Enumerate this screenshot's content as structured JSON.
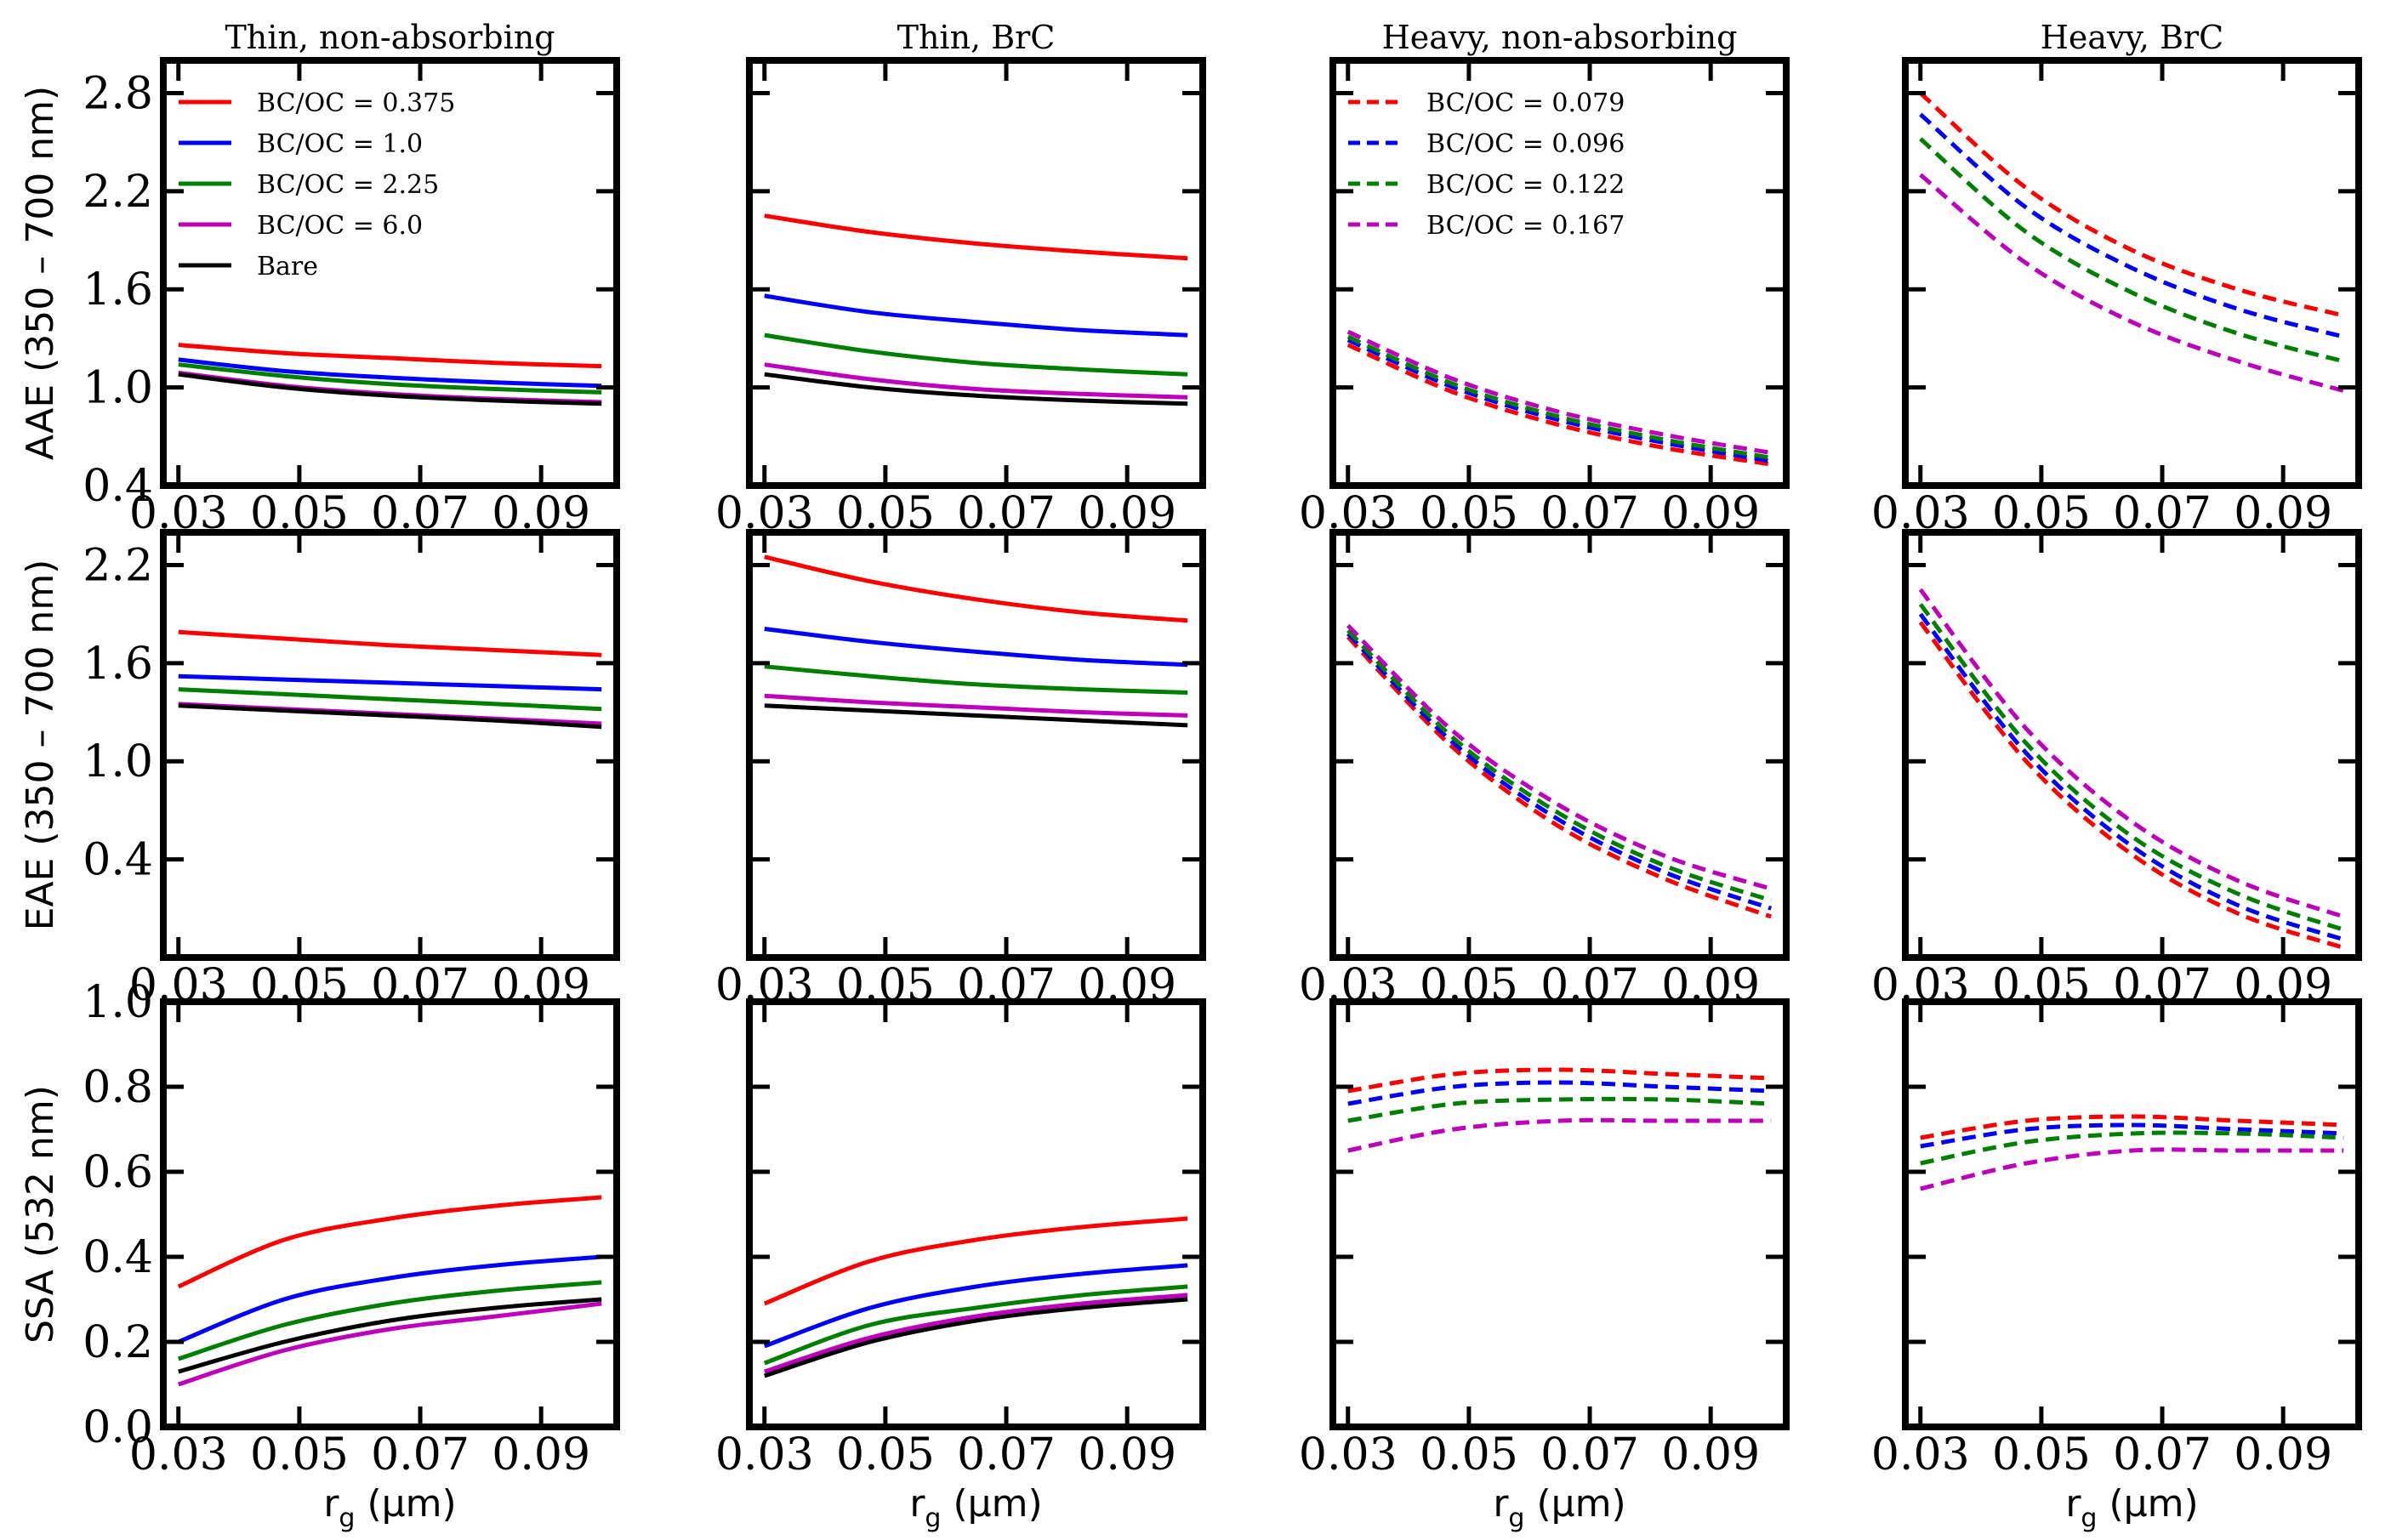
{
  "colors": {
    "red": "#ff0000",
    "blue": "#0000ff",
    "green": "#008000",
    "magenta": "#bf00bf",
    "black": "#000000"
  },
  "xlabel": "r_g (µm)",
  "row_labels": [
    "AAE  (350 – 700 nm)",
    "EAE (350 – 700 nm)",
    "SSA (532 nm)"
  ],
  "chart_data": [
    {
      "panel": "thin-nonabs-aae",
      "type": "line",
      "title": "Thin, non-absorbing",
      "ylabel": "AAE  (350 – 700 nm)",
      "xlim": [
        0.0275,
        0.1025
      ],
      "ylim": [
        0.4,
        3.0
      ],
      "xticks": [
        "0.03",
        "0.05",
        "0.07",
        "0.09"
      ],
      "yticks": [
        "0.4",
        "1.0",
        "1.6",
        "2.2",
        "2.8"
      ],
      "x": [
        0.03,
        0.0475,
        0.065,
        0.0825,
        0.1
      ],
      "series": [
        {
          "name": "BC/OC = 0.375",
          "color": "red",
          "dash": false,
          "values": [
            1.26,
            1.21,
            1.18,
            1.15,
            1.13
          ]
        },
        {
          "name": "BC/OC = 1.0",
          "color": "blue",
          "dash": false,
          "values": [
            1.17,
            1.1,
            1.06,
            1.03,
            1.01
          ]
        },
        {
          "name": "BC/OC = 2.25",
          "color": "green",
          "dash": false,
          "values": [
            1.14,
            1.07,
            1.02,
            0.99,
            0.97
          ]
        },
        {
          "name": "BC/OC = 6.0",
          "color": "magenta",
          "dash": false,
          "values": [
            1.09,
            1.01,
            0.96,
            0.93,
            0.91
          ]
        },
        {
          "name": "Bare",
          "color": "black",
          "dash": false,
          "values": [
            1.08,
            1.0,
            0.95,
            0.92,
            0.9
          ]
        }
      ],
      "legend": [
        {
          "label": "BC/OC = 0.375",
          "color": "red",
          "dash": false
        },
        {
          "label": "BC/OC = 1.0",
          "color": "blue",
          "dash": false
        },
        {
          "label": "BC/OC = 2.25",
          "color": "green",
          "dash": false
        },
        {
          "label": "BC/OC = 6.0",
          "color": "magenta",
          "dash": false
        },
        {
          "label": "Bare",
          "color": "black",
          "dash": false
        }
      ]
    },
    {
      "panel": "thin-brc-aae",
      "type": "line",
      "title": "Thin, BrC",
      "ylabel": "",
      "xlim": [
        0.0275,
        0.1025
      ],
      "ylim": [
        0.4,
        3.0
      ],
      "xticks": [
        "0.03",
        "0.05",
        "0.07",
        "0.09"
      ],
      "yticks": [],
      "x": [
        0.03,
        0.0475,
        0.065,
        0.0825,
        0.1
      ],
      "series": [
        {
          "name": "BC/OC = 0.375",
          "color": "red",
          "dash": false,
          "values": [
            2.05,
            1.95,
            1.88,
            1.83,
            1.79
          ]
        },
        {
          "name": "BC/OC = 1.0",
          "color": "blue",
          "dash": false,
          "values": [
            1.56,
            1.46,
            1.4,
            1.35,
            1.32
          ]
        },
        {
          "name": "BC/OC = 2.25",
          "color": "green",
          "dash": false,
          "values": [
            1.32,
            1.22,
            1.15,
            1.11,
            1.08
          ]
        },
        {
          "name": "BC/OC = 6.0",
          "color": "magenta",
          "dash": false,
          "values": [
            1.14,
            1.05,
            0.99,
            0.96,
            0.94
          ]
        },
        {
          "name": "Bare",
          "color": "black",
          "dash": false,
          "values": [
            1.08,
            1.0,
            0.95,
            0.92,
            0.9
          ]
        }
      ]
    },
    {
      "panel": "heavy-nonabs-aae",
      "type": "line",
      "title": "Heavy, non-absorbing",
      "ylabel": "",
      "xlim": [
        0.0275,
        0.1025
      ],
      "ylim": [
        0.4,
        3.0
      ],
      "xticks": [
        "0.03",
        "0.05",
        "0.07",
        "0.09"
      ],
      "yticks": [],
      "x": [
        0.03,
        0.0475,
        0.065,
        0.0825,
        0.1
      ],
      "series": [
        {
          "name": "BC/OC = 0.079",
          "color": "red",
          "dash": true,
          "values": [
            1.26,
            0.97,
            0.77,
            0.63,
            0.53
          ]
        },
        {
          "name": "BC/OC = 0.096",
          "color": "blue",
          "dash": true,
          "values": [
            1.29,
            1.0,
            0.8,
            0.66,
            0.55
          ]
        },
        {
          "name": "BC/OC = 0.122",
          "color": "green",
          "dash": true,
          "values": [
            1.31,
            1.02,
            0.82,
            0.68,
            0.57
          ]
        },
        {
          "name": "BC/OC = 0.167",
          "color": "magenta",
          "dash": true,
          "values": [
            1.34,
            1.05,
            0.85,
            0.71,
            0.6
          ]
        }
      ],
      "legend": [
        {
          "label": "BC/OC = 0.079",
          "color": "red",
          "dash": true
        },
        {
          "label": "BC/OC = 0.096",
          "color": "blue",
          "dash": true
        },
        {
          "label": "BC/OC = 0.122",
          "color": "green",
          "dash": true
        },
        {
          "label": "BC/OC = 0.167",
          "color": "magenta",
          "dash": true
        }
      ]
    },
    {
      "panel": "heavy-brc-aae",
      "type": "line",
      "title": "Heavy, BrC",
      "ylabel": "",
      "xlim": [
        0.0275,
        0.1025
      ],
      "ylim": [
        0.4,
        3.0
      ],
      "xticks": [
        "0.03",
        "0.05",
        "0.07",
        "0.09"
      ],
      "yticks": [],
      "x": [
        0.03,
        0.0475,
        0.065,
        0.0825,
        0.1
      ],
      "series": [
        {
          "name": "BC/OC = 0.079",
          "color": "red",
          "dash": true,
          "values": [
            2.8,
            2.22,
            1.84,
            1.6,
            1.44
          ]
        },
        {
          "name": "BC/OC = 0.096",
          "color": "blue",
          "dash": true,
          "values": [
            2.67,
            2.1,
            1.73,
            1.48,
            1.31
          ]
        },
        {
          "name": "BC/OC = 0.122",
          "color": "green",
          "dash": true,
          "values": [
            2.52,
            1.95,
            1.58,
            1.33,
            1.16
          ]
        },
        {
          "name": "BC/OC = 0.167",
          "color": "magenta",
          "dash": true,
          "values": [
            2.3,
            1.76,
            1.4,
            1.16,
            0.98
          ]
        }
      ]
    },
    {
      "panel": "thin-nonabs-eae",
      "type": "line",
      "title": "",
      "ylabel": "EAE (350 – 700 nm)",
      "xlim": [
        0.0275,
        0.1025
      ],
      "ylim": [
        -0.2,
        2.4
      ],
      "xticks": [
        "0.03",
        "0.05",
        "0.07",
        "0.09"
      ],
      "yticks": [
        "0.4",
        "1.0",
        "1.6",
        "2.2"
      ],
      "x": [
        0.03,
        0.0475,
        0.065,
        0.0825,
        0.1
      ],
      "series": [
        {
          "name": "BC/OC = 0.375",
          "color": "red",
          "dash": false,
          "values": [
            1.79,
            1.75,
            1.71,
            1.68,
            1.65
          ]
        },
        {
          "name": "BC/OC = 1.0",
          "color": "blue",
          "dash": false,
          "values": [
            1.52,
            1.5,
            1.48,
            1.46,
            1.44
          ]
        },
        {
          "name": "BC/OC = 2.25",
          "color": "green",
          "dash": false,
          "values": [
            1.44,
            1.41,
            1.38,
            1.35,
            1.32
          ]
        },
        {
          "name": "BC/OC = 6.0",
          "color": "magenta",
          "dash": false,
          "values": [
            1.35,
            1.32,
            1.29,
            1.26,
            1.23
          ]
        },
        {
          "name": "Bare",
          "color": "black",
          "dash": false,
          "values": [
            1.34,
            1.31,
            1.28,
            1.25,
            1.21
          ]
        }
      ]
    },
    {
      "panel": "thin-brc-eae",
      "type": "line",
      "title": "",
      "ylabel": "",
      "xlim": [
        0.0275,
        0.1025
      ],
      "ylim": [
        -0.2,
        2.4
      ],
      "xticks": [
        "0.03",
        "0.05",
        "0.07",
        "0.09"
      ],
      "yticks": [],
      "x": [
        0.03,
        0.0475,
        0.065,
        0.0825,
        0.1
      ],
      "series": [
        {
          "name": "BC/OC = 0.375",
          "color": "red",
          "dash": false,
          "values": [
            2.25,
            2.1,
            1.99,
            1.91,
            1.86
          ]
        },
        {
          "name": "BC/OC = 1.0",
          "color": "blue",
          "dash": false,
          "values": [
            1.81,
            1.73,
            1.67,
            1.62,
            1.59
          ]
        },
        {
          "name": "BC/OC = 2.25",
          "color": "green",
          "dash": false,
          "values": [
            1.58,
            1.52,
            1.47,
            1.44,
            1.42
          ]
        },
        {
          "name": "BC/OC = 6.0",
          "color": "magenta",
          "dash": false,
          "values": [
            1.4,
            1.36,
            1.33,
            1.3,
            1.28
          ]
        },
        {
          "name": "Bare",
          "color": "black",
          "dash": false,
          "values": [
            1.34,
            1.31,
            1.28,
            1.25,
            1.22
          ]
        }
      ]
    },
    {
      "panel": "heavy-nonabs-eae",
      "type": "line",
      "title": "",
      "ylabel": "",
      "xlim": [
        0.0275,
        0.1025
      ],
      "ylim": [
        -0.2,
        2.4
      ],
      "xticks": [
        "0.03",
        "0.05",
        "0.07",
        "0.09"
      ],
      "yticks": [],
      "x": [
        0.03,
        0.0475,
        0.065,
        0.0825,
        0.1
      ],
      "series": [
        {
          "name": "BC/OC = 0.079",
          "color": "red",
          "dash": true,
          "values": [
            1.76,
            1.08,
            0.6,
            0.28,
            0.05
          ]
        },
        {
          "name": "BC/OC = 0.096",
          "color": "blue",
          "dash": true,
          "values": [
            1.78,
            1.11,
            0.64,
            0.32,
            0.1
          ]
        },
        {
          "name": "BC/OC = 0.122",
          "color": "green",
          "dash": true,
          "values": [
            1.8,
            1.14,
            0.68,
            0.36,
            0.15
          ]
        },
        {
          "name": "BC/OC = 0.167",
          "color": "magenta",
          "dash": true,
          "values": [
            1.83,
            1.18,
            0.73,
            0.42,
            0.22
          ]
        }
      ]
    },
    {
      "panel": "heavy-brc-eae",
      "type": "line",
      "title": "",
      "ylabel": "",
      "xlim": [
        0.0275,
        0.1025
      ],
      "ylim": [
        -0.2,
        2.4
      ],
      "xticks": [
        "0.03",
        "0.05",
        "0.07",
        "0.09"
      ],
      "yticks": [],
      "x": [
        0.03,
        0.0475,
        0.065,
        0.0825,
        0.1
      ],
      "series": [
        {
          "name": "BC/OC = 0.079",
          "color": "red",
          "dash": true,
          "values": [
            1.85,
            1.0,
            0.43,
            0.07,
            -0.14
          ]
        },
        {
          "name": "BC/OC = 0.096",
          "color": "blue",
          "dash": true,
          "values": [
            1.9,
            1.05,
            0.48,
            0.12,
            -0.09
          ]
        },
        {
          "name": "BC/OC = 0.122",
          "color": "green",
          "dash": true,
          "values": [
            1.96,
            1.11,
            0.54,
            0.19,
            -0.03
          ]
        },
        {
          "name": "BC/OC = 0.167",
          "color": "magenta",
          "dash": true,
          "values": [
            2.05,
            1.2,
            0.63,
            0.27,
            0.05
          ]
        }
      ]
    },
    {
      "panel": "thin-nonabs-ssa",
      "type": "line",
      "title": "",
      "ylabel": "SSA (532 nm)",
      "xlim": [
        0.0275,
        0.1025
      ],
      "ylim": [
        0.0,
        1.0
      ],
      "xticks": [
        "0.03",
        "0.05",
        "0.07",
        "0.09"
      ],
      "yticks": [
        "0.0",
        "0.2",
        "0.4",
        "0.6",
        "0.8",
        "1.0"
      ],
      "x": [
        0.03,
        0.0475,
        0.065,
        0.0825,
        0.1
      ],
      "series": [
        {
          "name": "BC/OC = 0.375",
          "color": "red",
          "dash": false,
          "values": [
            0.33,
            0.44,
            0.49,
            0.52,
            0.54
          ]
        },
        {
          "name": "BC/OC = 1.0",
          "color": "blue",
          "dash": false,
          "values": [
            0.2,
            0.3,
            0.35,
            0.38,
            0.4
          ]
        },
        {
          "name": "BC/OC = 2.25",
          "color": "green",
          "dash": false,
          "values": [
            0.16,
            0.24,
            0.29,
            0.32,
            0.34
          ]
        },
        {
          "name": "BC/OC = 6.0",
          "color": "magenta",
          "dash": false,
          "values": [
            0.1,
            0.18,
            0.23,
            0.26,
            0.29
          ]
        },
        {
          "name": "Bare",
          "color": "black",
          "dash": false,
          "values": [
            0.13,
            0.2,
            0.25,
            0.28,
            0.3
          ]
        }
      ]
    },
    {
      "panel": "thin-brc-ssa",
      "type": "line",
      "title": "",
      "ylabel": "",
      "xlim": [
        0.0275,
        0.1025
      ],
      "ylim": [
        0.0,
        1.0
      ],
      "xticks": [
        "0.03",
        "0.05",
        "0.07",
        "0.09"
      ],
      "yticks": [],
      "x": [
        0.03,
        0.0475,
        0.065,
        0.0825,
        0.1
      ],
      "series": [
        {
          "name": "BC/OC = 0.375",
          "color": "red",
          "dash": false,
          "values": [
            0.29,
            0.39,
            0.44,
            0.47,
            0.49
          ]
        },
        {
          "name": "BC/OC = 1.0",
          "color": "blue",
          "dash": false,
          "values": [
            0.19,
            0.28,
            0.33,
            0.36,
            0.38
          ]
        },
        {
          "name": "BC/OC = 2.25",
          "color": "green",
          "dash": false,
          "values": [
            0.15,
            0.24,
            0.28,
            0.31,
            0.33
          ]
        },
        {
          "name": "BC/OC = 6.0",
          "color": "magenta",
          "dash": false,
          "values": [
            0.13,
            0.21,
            0.26,
            0.29,
            0.31
          ]
        },
        {
          "name": "Bare",
          "color": "black",
          "dash": false,
          "values": [
            0.12,
            0.2,
            0.25,
            0.28,
            0.3
          ]
        }
      ]
    },
    {
      "panel": "heavy-nonabs-ssa",
      "type": "line",
      "title": "",
      "ylabel": "",
      "xlim": [
        0.0275,
        0.1025
      ],
      "ylim": [
        0.0,
        1.0
      ],
      "xticks": [
        "0.03",
        "0.05",
        "0.07",
        "0.09"
      ],
      "yticks": [],
      "x": [
        0.03,
        0.0475,
        0.065,
        0.0825,
        0.1
      ],
      "series": [
        {
          "name": "BC/OC = 0.079",
          "color": "red",
          "dash": true,
          "values": [
            0.79,
            0.83,
            0.84,
            0.83,
            0.82
          ]
        },
        {
          "name": "BC/OC = 0.096",
          "color": "blue",
          "dash": true,
          "values": [
            0.76,
            0.8,
            0.81,
            0.8,
            0.79
          ]
        },
        {
          "name": "BC/OC = 0.122",
          "color": "green",
          "dash": true,
          "values": [
            0.72,
            0.76,
            0.77,
            0.77,
            0.76
          ]
        },
        {
          "name": "BC/OC = 0.167",
          "color": "magenta",
          "dash": true,
          "values": [
            0.65,
            0.7,
            0.72,
            0.72,
            0.72
          ]
        }
      ]
    },
    {
      "panel": "heavy-brc-ssa",
      "type": "line",
      "title": "",
      "ylabel": "",
      "xlim": [
        0.0275,
        0.1025
      ],
      "ylim": [
        0.0,
        1.0
      ],
      "xticks": [
        "0.03",
        "0.05",
        "0.07",
        "0.09"
      ],
      "yticks": [],
      "x": [
        0.03,
        0.0475,
        0.065,
        0.0825,
        0.1
      ],
      "series": [
        {
          "name": "BC/OC = 0.079",
          "color": "red",
          "dash": true,
          "values": [
            0.68,
            0.72,
            0.73,
            0.72,
            0.71
          ]
        },
        {
          "name": "BC/OC = 0.096",
          "color": "blue",
          "dash": true,
          "values": [
            0.66,
            0.7,
            0.71,
            0.7,
            0.69
          ]
        },
        {
          "name": "BC/OC = 0.122",
          "color": "green",
          "dash": true,
          "values": [
            0.62,
            0.67,
            0.69,
            0.69,
            0.68
          ]
        },
        {
          "name": "BC/OC = 0.167",
          "color": "magenta",
          "dash": true,
          "values": [
            0.56,
            0.62,
            0.65,
            0.65,
            0.65
          ]
        }
      ]
    }
  ]
}
